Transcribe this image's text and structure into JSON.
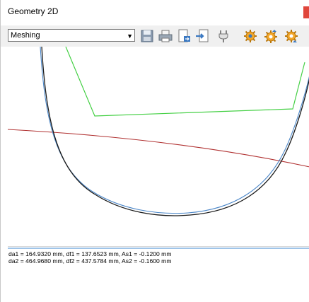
{
  "window": {
    "title": "Geometry 2D"
  },
  "toolbar": {
    "mode_select": {
      "selected": "Meshing"
    },
    "icons": [
      "save-icon",
      "print-icon",
      "export-icon",
      "import-icon",
      "plug-icon",
      "gear-add-icon",
      "gear-up-icon",
      "gear-down-icon"
    ]
  },
  "colors": {
    "accent_splitter": "#9fc4e8",
    "gear_black_curve": "#1a1a1a",
    "gear_blue_curve": "#4a86c8",
    "green_outline": "#46d046",
    "red_arc": "#b03030",
    "close_button": "#e0463b"
  },
  "output": {
    "lines": [
      "da1 = 164.9320 mm, df1 = 137.6523 mm, As1 = -0.1200 mm",
      "da2 = 464.9680 mm, df2 = 437.5784 mm, As2 = -0.1600 mm"
    ]
  }
}
